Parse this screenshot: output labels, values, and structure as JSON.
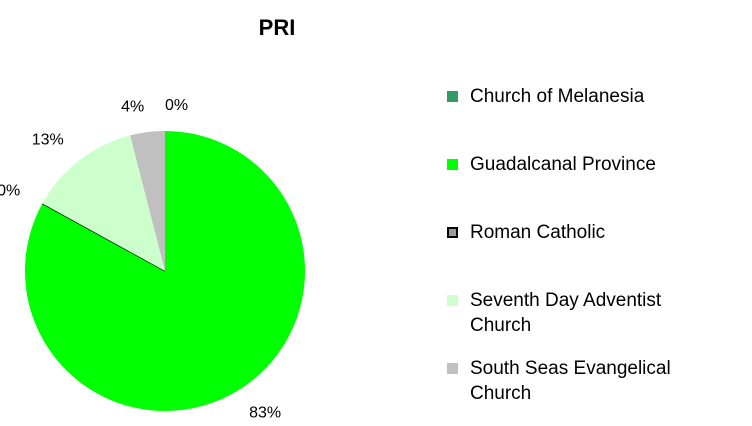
{
  "chart_data": {
    "type": "pie",
    "title": "PRI",
    "categories": [
      "Church of Melanesia",
      "Guadalcanal Province",
      "Roman Catholic",
      "Seventh Day Adventist Church",
      "South Seas Evangelical Church"
    ],
    "values": [
      0,
      83,
      0,
      13,
      4
    ],
    "value_labels": [
      "0%",
      "83%",
      "0%",
      "13%",
      "4%"
    ],
    "colors": [
      "#339966",
      "#00ff00",
      "#999999",
      "#ccffcc",
      "#c0c0c0"
    ],
    "edgecolors": [
      null,
      null,
      "#000000",
      null,
      null
    ],
    "legend": "right"
  }
}
